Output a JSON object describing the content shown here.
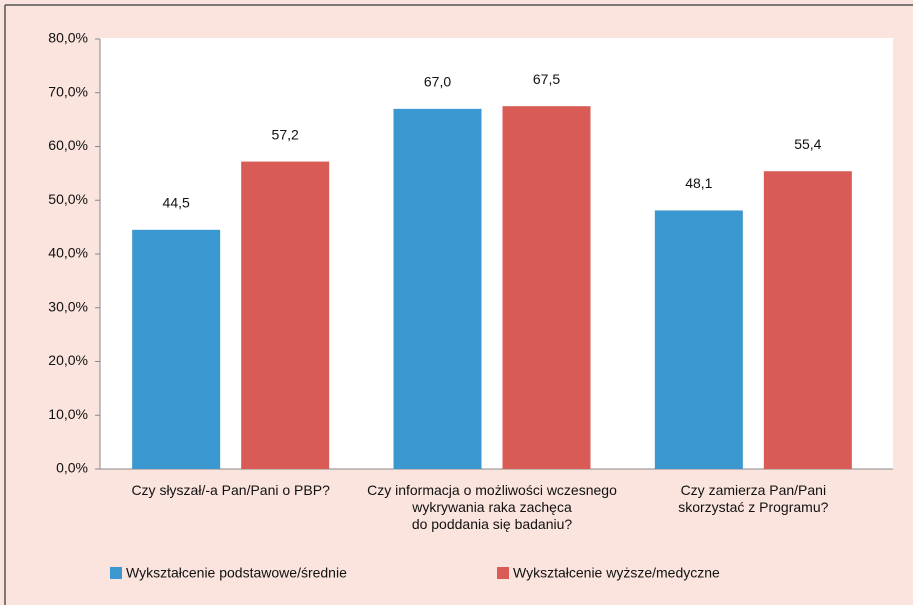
{
  "chart_data": {
    "type": "bar",
    "categories": [
      "Czy słyszał/-a Pan/Pani o PBP?",
      "Czy informacja o możliwości wczesnego\nwykrywania raka zachęca\ndo poddania się badaniu?",
      "Czy zamierza Pan/Pani\nskorzystać z Programu?"
    ],
    "series": [
      {
        "name": "Wykształcenie podstawowe/średnie",
        "color": "#3b97cf",
        "values": [
          44.5,
          67.0,
          48.1
        ],
        "value_labels": [
          "44,5",
          "67,0",
          "48,1"
        ]
      },
      {
        "name": "Wykształcenie wyższe/medyczne",
        "color": "#d95b56",
        "values": [
          57.2,
          67.5,
          55.4
        ],
        "value_labels": [
          "57,2",
          "67,5",
          "55,4"
        ]
      }
    ],
    "ylim": [
      0,
      80
    ],
    "yticks": [
      {
        "value": 0,
        "label": "0,0%"
      },
      {
        "value": 10,
        "label": "10,0%"
      },
      {
        "value": 20,
        "label": "20,0%"
      },
      {
        "value": 30,
        "label": "30,0%"
      },
      {
        "value": 40,
        "label": "40,0%"
      },
      {
        "value": 50,
        "label": "50,0%"
      },
      {
        "value": 60,
        "label": "60,0%"
      },
      {
        "value": 70,
        "label": "70,0%"
      },
      {
        "value": 80,
        "label": "80,0%"
      }
    ],
    "legend": "bottom"
  }
}
